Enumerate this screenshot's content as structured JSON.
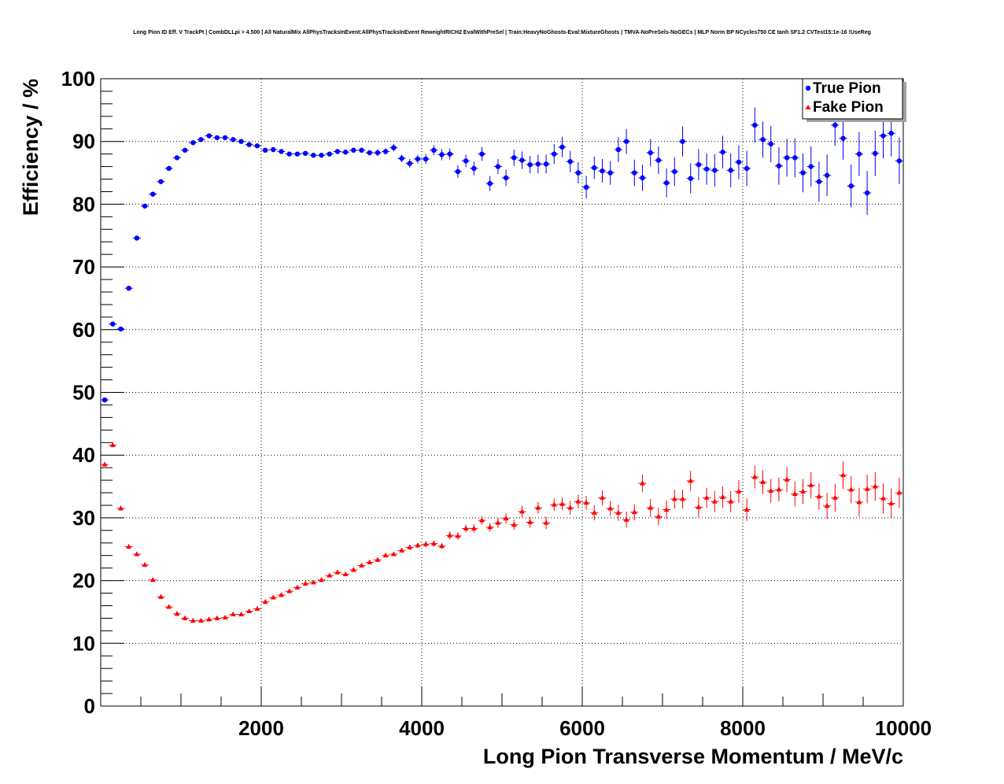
{
  "chart_data": {
    "type": "scatter",
    "title": "Long Pion ID Eff. V TrackPt | CombDLLpi > 4.500 | All NaturalMix AllPhysTracksInEvent:AllPhysTracksInEvent ReweightRICH2 EvalWithPreSel | Train:HeavyNoGhosts-Eval:MixtureGhosts | TMVA-NoPreSels-NoGECs | MLP Norm BP NCycles750 CE tanh SF1.2 CVTest15:1e-16 !UseReg",
    "xlabel": "Long Pion Transverse Momentum / MeV/c",
    "ylabel": "Efficiency / %",
    "xlim": [
      0,
      10000
    ],
    "ylim": [
      0,
      100
    ],
    "xticks": [
      "2000",
      "4000",
      "6000",
      "8000",
      "10000"
    ],
    "yticks": [
      "0",
      "10",
      "20",
      "30",
      "40",
      "50",
      "60",
      "70",
      "80",
      "90",
      "100"
    ],
    "grid": true,
    "legend_position": "top-right",
    "series": [
      {
        "name": "True Pion",
        "marker": "circle",
        "color": "#0000ff",
        "x": [
          50,
          150,
          250,
          350,
          450,
          550,
          650,
          750,
          850,
          950,
          1050,
          1150,
          1250,
          1350,
          1450,
          1550,
          1650,
          1750,
          1850,
          1950,
          2050,
          2150,
          2250,
          2350,
          2450,
          2550,
          2650,
          2750,
          2850,
          2950,
          3050,
          3150,
          3250,
          3350,
          3450,
          3550,
          3650,
          3750,
          3850,
          3950,
          4050,
          4150,
          4250,
          4350,
          4450,
          4550,
          4650,
          4750,
          4850,
          4950,
          5050,
          5150,
          5250,
          5350,
          5450,
          5550,
          5650,
          5750,
          5850,
          5950,
          6050,
          6150,
          6250,
          6350,
          6450,
          6550,
          6650,
          6750,
          6850,
          6950,
          7050,
          7150,
          7250,
          7350,
          7450,
          7550,
          7650,
          7750,
          7850,
          7950,
          8050,
          8150,
          8250,
          8350,
          8450,
          8550,
          8650,
          8750,
          8850,
          8950,
          9050,
          9150,
          9250,
          9350,
          9450,
          9550,
          9650,
          9750,
          9850,
          9950
        ],
        "y": [
          48.8,
          60.9,
          60.1,
          66.6,
          74.6,
          79.7,
          81.6,
          83.6,
          85.7,
          87.4,
          88.6,
          89.8,
          90.3,
          90.9,
          90.6,
          90.6,
          90.3,
          90.0,
          89.5,
          89.3,
          88.6,
          88.7,
          88.4,
          88.0,
          88.0,
          88.1,
          87.8,
          87.8,
          88.0,
          88.4,
          88.3,
          88.6,
          88.6,
          88.2,
          88.2,
          88.4,
          89.0,
          87.3,
          86.5,
          87.2,
          87.2,
          88.6,
          87.9,
          88.0,
          85.2,
          86.9,
          85.7,
          88.0,
          83.3,
          86.0,
          84.2,
          87.4,
          87.0,
          86.3,
          86.4,
          86.4,
          88.0,
          89.1,
          86.8,
          85.0,
          82.7,
          85.8,
          85.3,
          85.0,
          88.7,
          90.0,
          85.0,
          84.2,
          88.2,
          87.0,
          83.4,
          85.2,
          90.0,
          84.1,
          86.3,
          85.6,
          85.4,
          88.3,
          85.4,
          86.7,
          85.7,
          92.6,
          90.3,
          89.6,
          86.1,
          87.4,
          87.4,
          85.0,
          86.0,
          83.6,
          84.6,
          92.6,
          90.5,
          82.9,
          88.0,
          81.8,
          88.1,
          90.9,
          91.3,
          86.9
        ],
        "err": [
          0.3,
          0.3,
          0.3,
          0.3,
          0.3,
          0.3,
          0.3,
          0.3,
          0.3,
          0.3,
          0.3,
          0.3,
          0.3,
          0.3,
          0.3,
          0.3,
          0.3,
          0.3,
          0.3,
          0.3,
          0.3,
          0.3,
          0.3,
          0.3,
          0.3,
          0.3,
          0.3,
          0.3,
          0.3,
          0.3,
          0.4,
          0.4,
          0.4,
          0.4,
          0.5,
          0.5,
          0.6,
          0.6,
          0.7,
          0.7,
          0.8,
          0.8,
          0.9,
          0.9,
          1.0,
          1.0,
          1.1,
          1.1,
          1.2,
          1.2,
          1.3,
          1.3,
          1.4,
          1.4,
          1.5,
          1.5,
          1.6,
          1.6,
          1.7,
          1.7,
          1.8,
          1.8,
          1.9,
          1.9,
          2.0,
          2.0,
          2.1,
          2.1,
          2.2,
          2.2,
          2.3,
          2.3,
          2.4,
          2.4,
          2.5,
          2.5,
          2.6,
          2.6,
          2.7,
          2.7,
          2.8,
          2.8,
          2.9,
          2.9,
          3.0,
          3.0,
          3.1,
          3.1,
          3.2,
          3.2,
          3.3,
          3.3,
          3.4,
          3.4,
          3.5,
          3.5,
          3.6,
          3.6,
          3.7,
          3.7
        ]
      },
      {
        "name": "Fake Pion",
        "marker": "triangle",
        "color": "#ff0000",
        "x": [
          50,
          150,
          250,
          350,
          450,
          550,
          650,
          750,
          850,
          950,
          1050,
          1150,
          1250,
          1350,
          1450,
          1550,
          1650,
          1750,
          1850,
          1950,
          2050,
          2150,
          2250,
          2350,
          2450,
          2550,
          2650,
          2750,
          2850,
          2950,
          3050,
          3150,
          3250,
          3350,
          3450,
          3550,
          3650,
          3750,
          3850,
          3950,
          4050,
          4150,
          4250,
          4350,
          4450,
          4550,
          4650,
          4750,
          4850,
          4950,
          5050,
          5150,
          5250,
          5350,
          5450,
          5550,
          5650,
          5750,
          5850,
          5950,
          6050,
          6150,
          6250,
          6350,
          6450,
          6550,
          6650,
          6750,
          6850,
          6950,
          7050,
          7150,
          7250,
          7350,
          7450,
          7550,
          7650,
          7750,
          7850,
          7950,
          8050,
          8150,
          8250,
          8350,
          8450,
          8550,
          8650,
          8750,
          8850,
          8950,
          9050,
          9150,
          9250,
          9350,
          9450,
          9550,
          9650,
          9750,
          9850,
          9950
        ],
        "y": [
          38.5,
          41.6,
          31.5,
          25.4,
          24.2,
          22.5,
          20.1,
          17.4,
          15.8,
          14.7,
          14.0,
          13.6,
          13.6,
          13.8,
          14.0,
          14.1,
          14.6,
          14.6,
          15.1,
          15.5,
          16.6,
          17.3,
          17.7,
          18.3,
          18.9,
          19.5,
          19.7,
          20.1,
          20.8,
          21.3,
          21.0,
          21.7,
          22.4,
          22.9,
          23.3,
          24.0,
          24.2,
          24.8,
          25.3,
          25.6,
          25.8,
          25.9,
          25.5,
          27.2,
          27.1,
          28.3,
          28.3,
          29.6,
          28.5,
          29.2,
          29.9,
          28.9,
          31.0,
          29.3,
          31.6,
          29.2,
          32.1,
          32.2,
          31.6,
          32.6,
          32.4,
          30.8,
          33.2,
          31.5,
          30.8,
          29.7,
          30.9,
          35.5,
          31.6,
          30.2,
          31.3,
          33.0,
          33.0,
          35.9,
          31.7,
          33.2,
          32.6,
          33.3,
          32.6,
          34.2,
          31.3,
          36.5,
          35.7,
          34.3,
          34.5,
          36.1,
          33.8,
          34.2,
          35.2,
          33.4,
          31.9,
          33.2,
          36.8,
          34.5,
          32.5,
          34.6,
          35.0,
          33.1,
          32.3,
          34.0
        ],
        "err": [
          0.3,
          0.3,
          0.3,
          0.3,
          0.3,
          0.3,
          0.3,
          0.3,
          0.3,
          0.3,
          0.3,
          0.3,
          0.3,
          0.3,
          0.3,
          0.3,
          0.3,
          0.3,
          0.3,
          0.3,
          0.3,
          0.3,
          0.3,
          0.3,
          0.3,
          0.3,
          0.3,
          0.3,
          0.3,
          0.3,
          0.3,
          0.3,
          0.3,
          0.3,
          0.3,
          0.3,
          0.3,
          0.4,
          0.4,
          0.4,
          0.5,
          0.5,
          0.5,
          0.6,
          0.6,
          0.6,
          0.7,
          0.7,
          0.7,
          0.8,
          0.8,
          0.8,
          0.9,
          0.9,
          0.9,
          1.0,
          1.0,
          1.0,
          1.1,
          1.1,
          1.1,
          1.2,
          1.2,
          1.2,
          1.3,
          1.3,
          1.3,
          1.4,
          1.4,
          1.4,
          1.5,
          1.5,
          1.5,
          1.6,
          1.6,
          1.6,
          1.7,
          1.7,
          1.7,
          1.8,
          1.8,
          1.8,
          1.9,
          1.9,
          1.9,
          2.0,
          2.0,
          2.0,
          2.1,
          2.1,
          2.1,
          2.2,
          2.2,
          2.2,
          2.3,
          2.3,
          2.3,
          2.4,
          2.4,
          2.4
        ]
      }
    ]
  },
  "colors": {
    "true_pion": "#0000ff",
    "fake_pion": "#ff0000",
    "frame": "#000000"
  }
}
